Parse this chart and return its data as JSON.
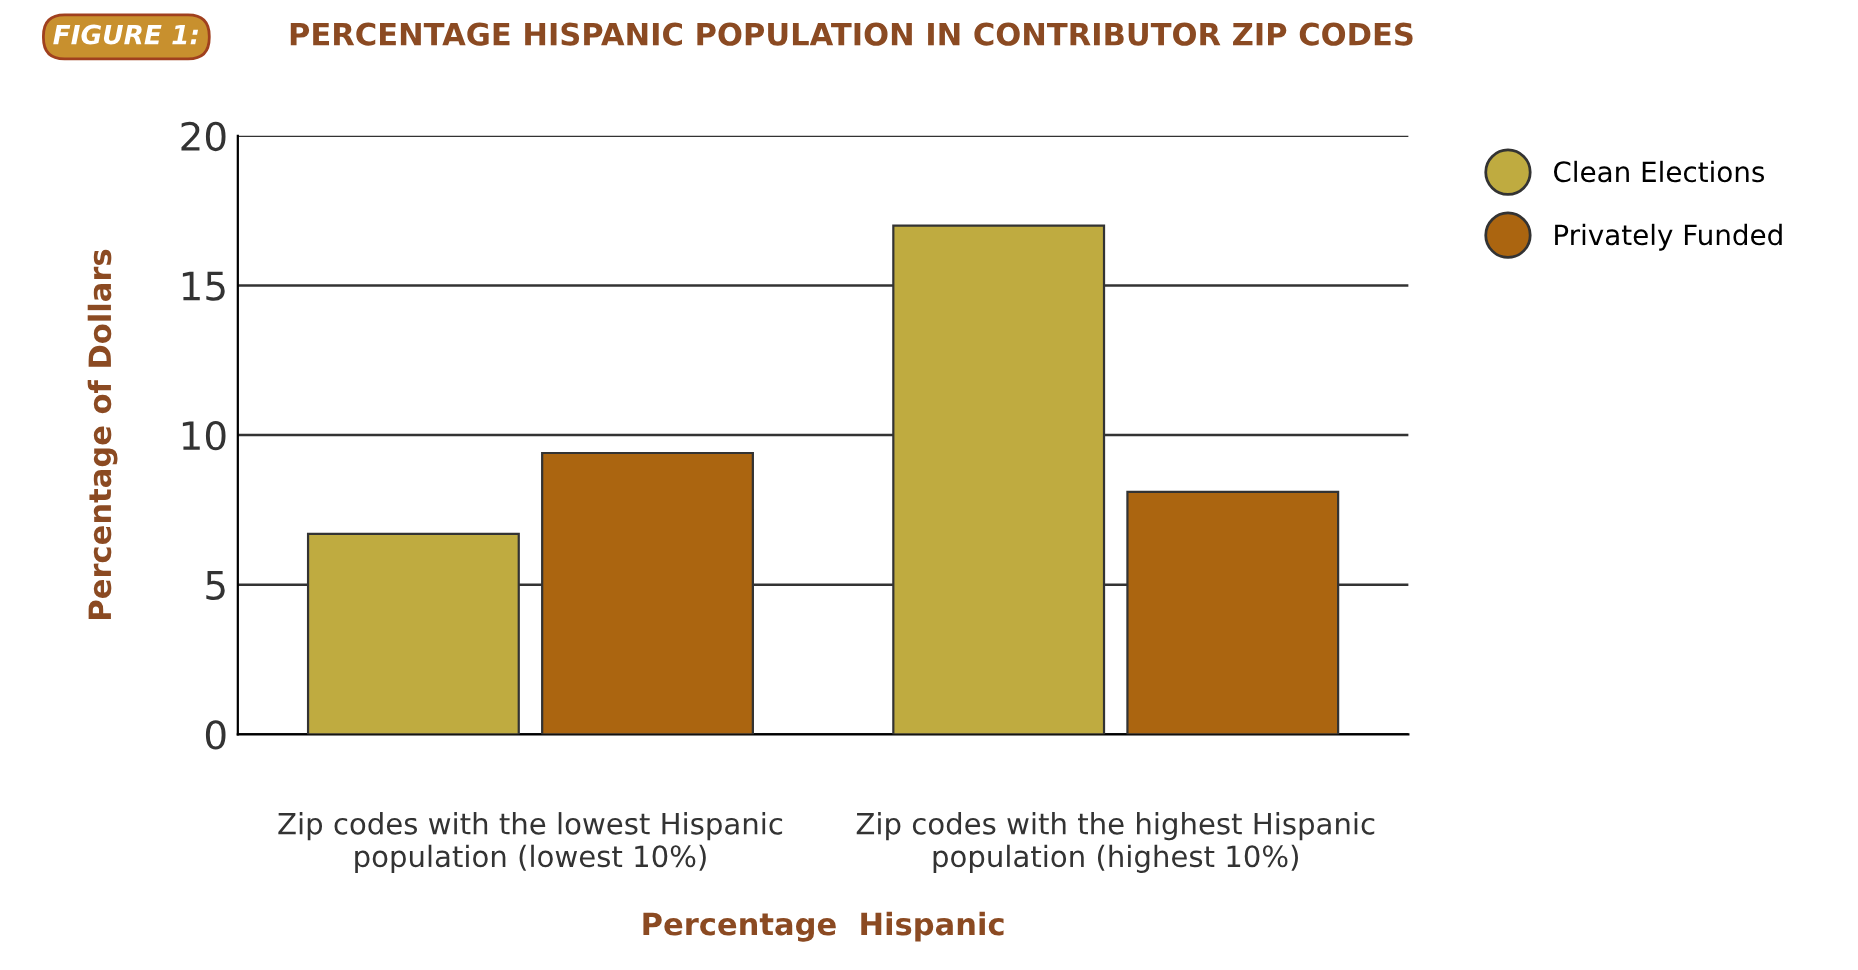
{
  "chart_data": {
    "type": "bar",
    "title": "PERCENTAGE HISPANIC POPULATION IN CONTRIBUTOR ZIP CODES",
    "annotations": [
      "FIGURE 1:"
    ],
    "categories": [
      "Zip codes with the lowest Hispanic\npopulation (lowest 10%)",
      "Zip codes with the highest Hispanic\npopulation (highest 10%)"
    ],
    "series": [
      {
        "name": "Clean Elections",
        "color": "#bfab40",
        "values": [
          6.7,
          17.0
        ]
      },
      {
        "name": "Privately Funded",
        "color": "#ab6510",
        "values": [
          9.4,
          8.1
        ]
      }
    ],
    "xlabel": "Percentage  Hispanic",
    "ylabel": "Percentage of Dollars",
    "ylim": [
      0,
      20
    ],
    "yticks": [
      0,
      5,
      10,
      15,
      20
    ],
    "grid": "y",
    "legend": "right"
  }
}
